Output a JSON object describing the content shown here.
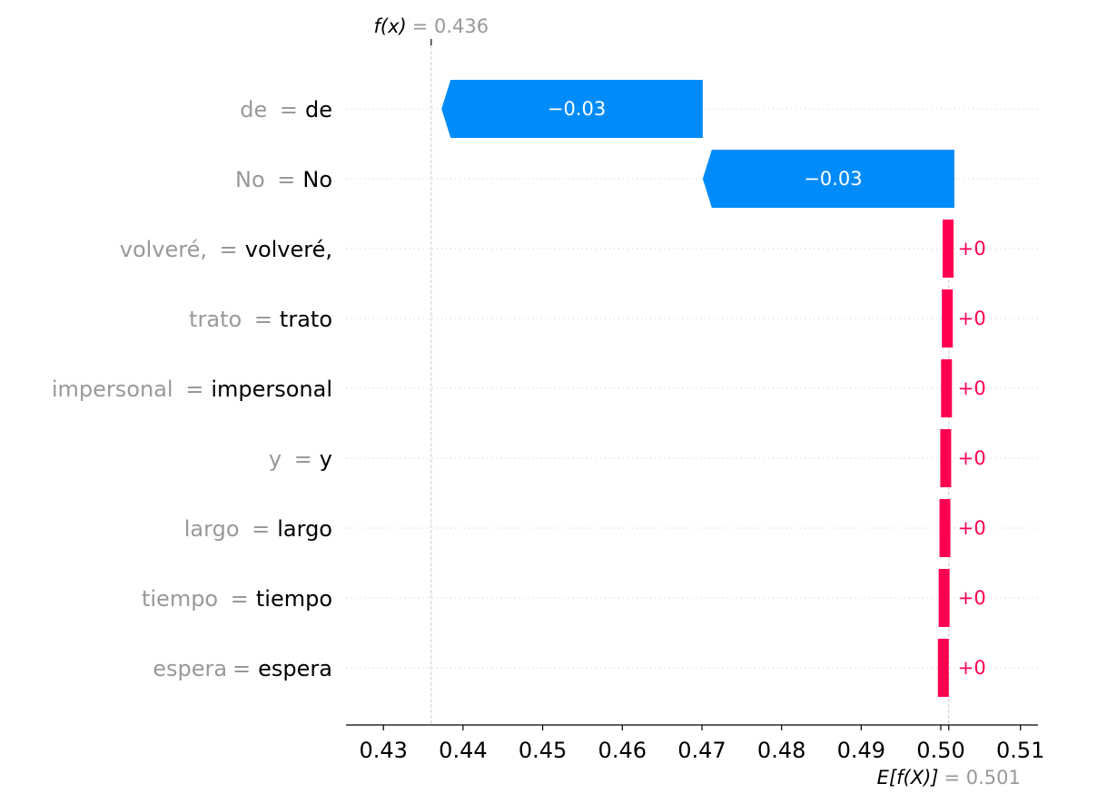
{
  "chart_data": {
    "type": "waterfall",
    "title": "",
    "xlabel": "",
    "ylabel": "",
    "xlim": [
      0.4253,
      0.5122
    ],
    "xticks": [
      "0.43",
      "0.44",
      "0.45",
      "0.46",
      "0.47",
      "0.48",
      "0.49",
      "0.50",
      "0.51"
    ],
    "xtick_values": [
      0.43,
      0.44,
      0.45,
      0.46,
      0.47,
      0.48,
      0.49,
      0.5,
      0.51
    ],
    "base_value": 0.501,
    "base_value_label": "E[f(X)]",
    "base_value_text": "= 0.501",
    "output_value": 0.436,
    "output_value_label": "f(x)",
    "output_value_text": "= 0.436",
    "grid": "dotted horizontal per feature row",
    "features": [
      {
        "name": "de ",
        "value": "de",
        "shap": -0.0328,
        "label": "−0.03"
      },
      {
        "name": "No ",
        "value": "No",
        "shap": -0.0316,
        "label": "−0.03"
      },
      {
        "name": "volveré, ",
        "value": "volveré,",
        "shap": 0.0001,
        "label": "+0"
      },
      {
        "name": "trato ",
        "value": "trato",
        "shap": 0.0001,
        "label": "+0"
      },
      {
        "name": "impersonal ",
        "value": "impersonal",
        "shap": 0.0001,
        "label": "+0"
      },
      {
        "name": "y ",
        "value": "y",
        "shap": 0.0001,
        "label": "+0"
      },
      {
        "name": "largo ",
        "value": "largo",
        "shap": 0.0001,
        "label": "+0"
      },
      {
        "name": "tiempo ",
        "value": "tiempo",
        "shap": 0.0001,
        "label": "+0"
      },
      {
        "name": "espera",
        "value": "espera",
        "shap": 0.0001,
        "label": "+0"
      }
    ],
    "colors": {
      "negative": "#008bfb",
      "positive": "#ff0051",
      "axis": "#000000",
      "muted": "#999999",
      "grid": "#cccccc"
    }
  }
}
